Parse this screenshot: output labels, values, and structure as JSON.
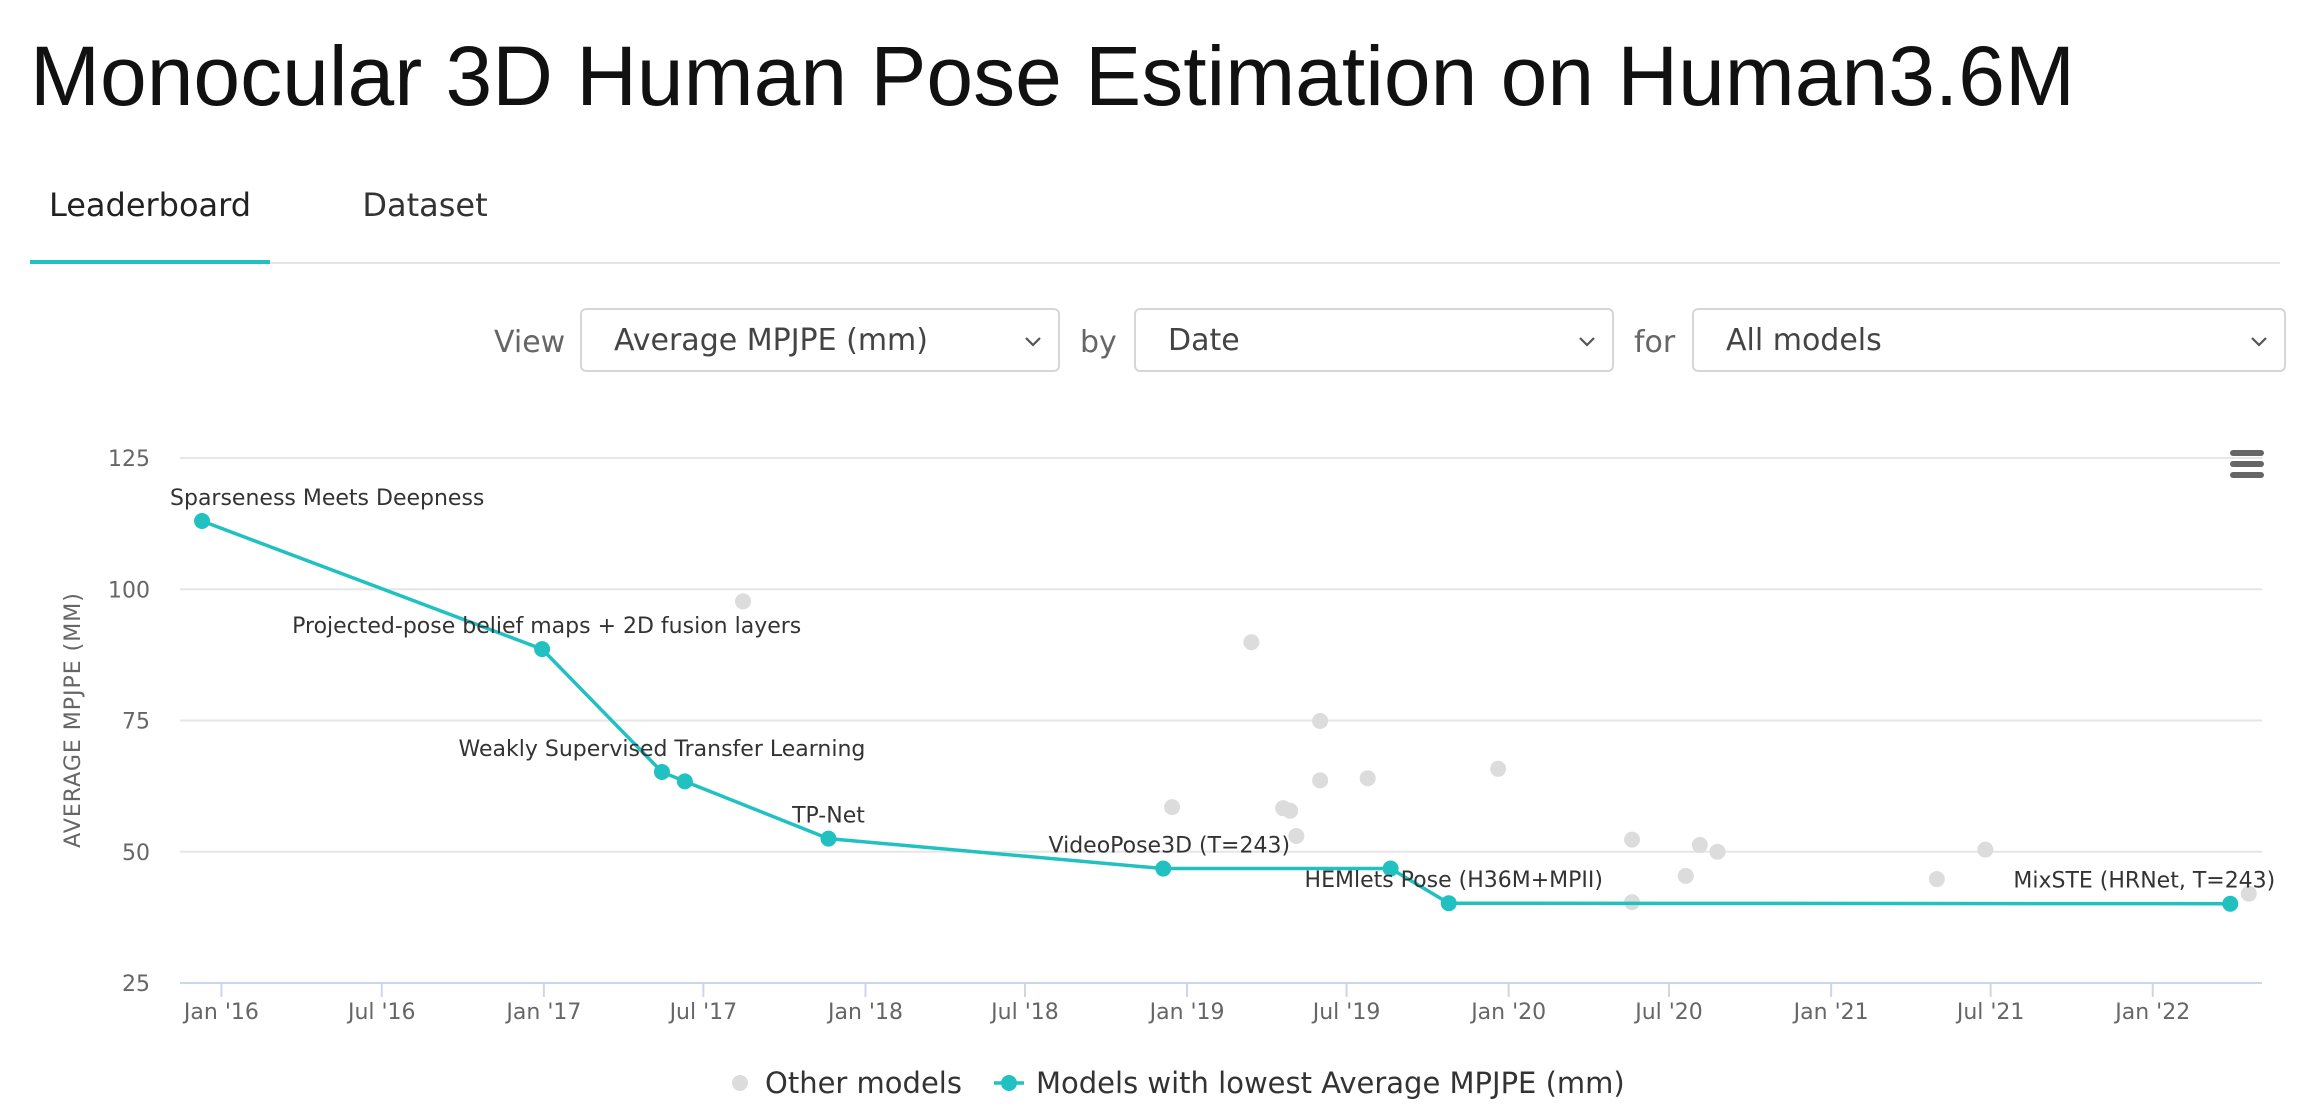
{
  "page": {
    "title": "Monocular 3D Human Pose Estimation on Human3.6M"
  },
  "tabs": [
    {
      "label": "Leaderboard",
      "active": true
    },
    {
      "label": "Dataset",
      "active": false
    }
  ],
  "filters": {
    "view_label": "View",
    "view_value": "Average MPJPE (mm)",
    "by_label": "by",
    "by_value": "Date",
    "for_label": "for",
    "for_value": "All models"
  },
  "chart_menu_icon": "hamburger-menu-icon",
  "colors": {
    "accent": "#21c1c1",
    "other_points": "#dcdcdc",
    "grid": "#e6e6e6",
    "axis": "#ccd6eb"
  },
  "chart_data": {
    "type": "scatter",
    "title": "",
    "xlabel": "",
    "ylabel": "AVERAGE MPJPE (MM)",
    "ylim": [
      25,
      125
    ],
    "xlim": [
      "2015-11-15",
      "2022-05-05"
    ],
    "yticks": [
      25,
      50,
      75,
      100,
      125
    ],
    "xticks": [
      {
        "date": "2016-01-01",
        "label": "Jan '16"
      },
      {
        "date": "2016-07-01",
        "label": "Jul '16"
      },
      {
        "date": "2017-01-01",
        "label": "Jan '17"
      },
      {
        "date": "2017-07-01",
        "label": "Jul '17"
      },
      {
        "date": "2018-01-01",
        "label": "Jan '18"
      },
      {
        "date": "2018-07-01",
        "label": "Jul '18"
      },
      {
        "date": "2019-01-01",
        "label": "Jan '19"
      },
      {
        "date": "2019-07-01",
        "label": "Jul '19"
      },
      {
        "date": "2020-01-01",
        "label": "Jan '20"
      },
      {
        "date": "2020-07-01",
        "label": "Jul '20"
      },
      {
        "date": "2021-01-01",
        "label": "Jan '21"
      },
      {
        "date": "2021-07-01",
        "label": "Jul '21"
      },
      {
        "date": "2022-01-01",
        "label": "Jan '22"
      }
    ],
    "grid": true,
    "legend_position": "bottom-center",
    "series": [
      {
        "name": "Other models",
        "type": "scatter",
        "points": [
          {
            "date": "2017-08-15",
            "y": 97.7
          },
          {
            "date": "2019-03-15",
            "y": 89.9
          },
          {
            "date": "2019-06-01",
            "y": 74.9
          },
          {
            "date": "2019-06-01",
            "y": 63.6
          },
          {
            "date": "2019-07-25",
            "y": 64.0
          },
          {
            "date": "2019-12-20",
            "y": 65.8
          },
          {
            "date": "2018-12-15",
            "y": 58.5
          },
          {
            "date": "2019-04-20",
            "y": 58.3
          },
          {
            "date": "2019-04-28",
            "y": 57.8
          },
          {
            "date": "2019-05-05",
            "y": 53.0
          },
          {
            "date": "2020-05-20",
            "y": 52.3
          },
          {
            "date": "2020-08-05",
            "y": 51.3
          },
          {
            "date": "2020-08-25",
            "y": 50.0
          },
          {
            "date": "2020-07-20",
            "y": 45.4
          },
          {
            "date": "2020-05-20",
            "y": 40.4
          },
          {
            "date": "2021-05-01",
            "y": 44.8
          },
          {
            "date": "2021-06-25",
            "y": 50.4
          },
          {
            "date": "2022-04-20",
            "y": 42.0
          }
        ]
      },
      {
        "name": "Models with lowest Average MPJPE (mm)",
        "type": "line",
        "points": [
          {
            "date": "2015-12-10",
            "y": 113.0,
            "label": "Sparseness Meets Deepness"
          },
          {
            "date": "2016-12-30",
            "y": 88.6,
            "label": "Projected-pose belief maps + 2D fusion layers"
          },
          {
            "date": "2017-05-15",
            "y": 65.2,
            "label": "Weakly Supervised Transfer Learning"
          },
          {
            "date": "2017-06-10",
            "y": 63.4,
            "label": ""
          },
          {
            "date": "2017-11-20",
            "y": 52.5,
            "label": "TP-Net"
          },
          {
            "date": "2018-12-05",
            "y": 46.8,
            "label": "VideoPose3D (T=243)"
          },
          {
            "date": "2019-08-20",
            "y": 46.8,
            "label": ""
          },
          {
            "date": "2019-10-25",
            "y": 40.2,
            "label": "HEMlets Pose (H36M+MPII)"
          },
          {
            "date": "2022-03-30",
            "y": 40.1,
            "label": "MixSTE (HRNet, T=243)"
          }
        ]
      }
    ]
  }
}
